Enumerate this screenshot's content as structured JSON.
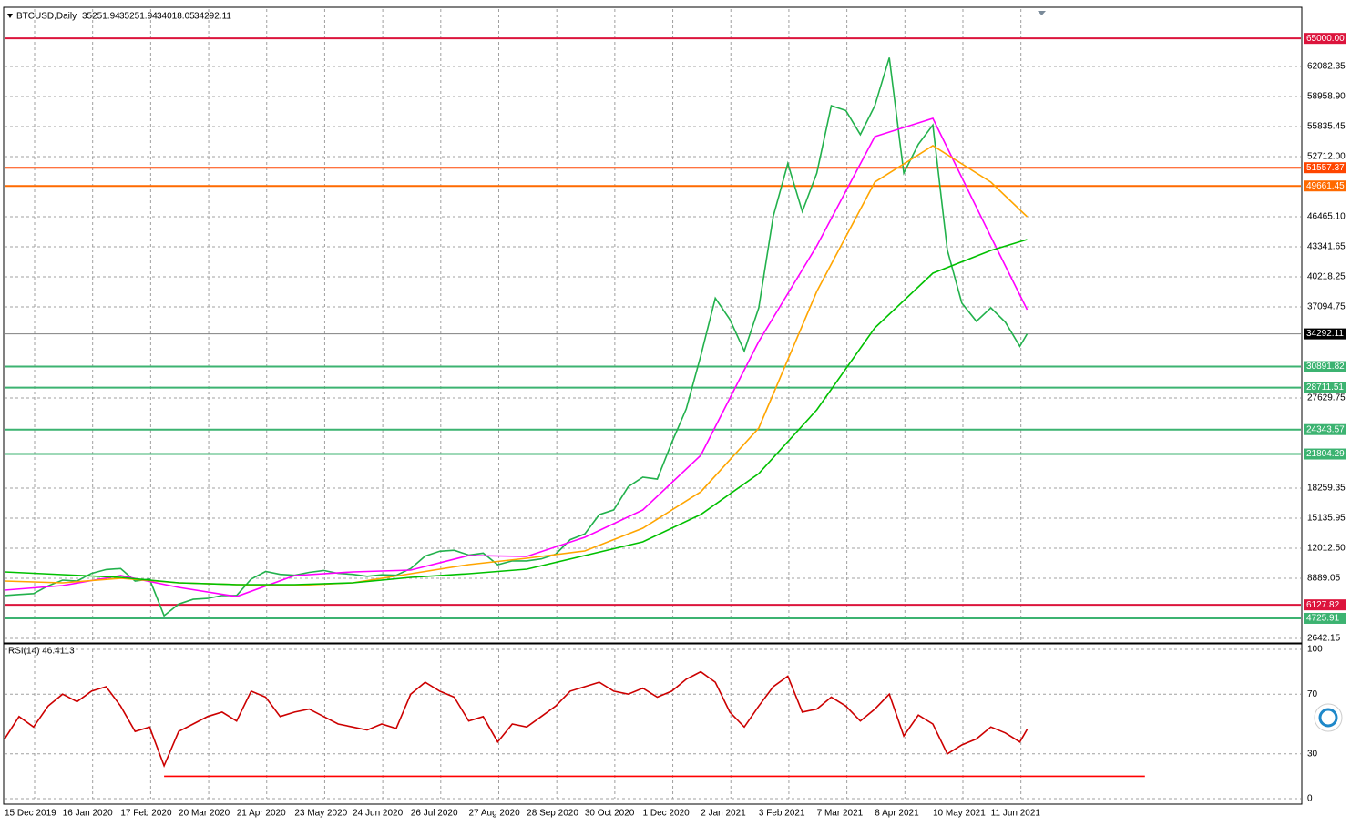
{
  "chart_data": [
    {
      "type": "line",
      "title": "BTCUSD,Daily",
      "ohlc": [
        35251.94,
        35251.94,
        34018.05,
        34292.11
      ],
      "current_price": 34292.11,
      "xlim": [
        0,
        715
      ],
      "ylim": [
        2263,
        68045
      ],
      "grid": true,
      "xticks": [
        {
          "value": 0,
          "label": "15 Dec 2019"
        },
        {
          "value": 32,
          "label": "16 Jan 2020"
        },
        {
          "value": 64,
          "label": "17 Feb 2020"
        },
        {
          "value": 96,
          "label": "20 Mar 2020"
        },
        {
          "value": 128,
          "label": "21 Apr 2020"
        },
        {
          "value": 160,
          "label": "23 May 2020"
        },
        {
          "value": 192,
          "label": "24 Jun 2020"
        },
        {
          "value": 224,
          "label": "26 Jul 2020"
        },
        {
          "value": 256,
          "label": "27 Aug 2020"
        },
        {
          "value": 288,
          "label": "28 Sep 2020"
        },
        {
          "value": 320,
          "label": "30 Oct 2020"
        },
        {
          "value": 352,
          "label": "1 Dec 2020"
        },
        {
          "value": 384,
          "label": "2 Jan 2021"
        },
        {
          "value": 416,
          "label": "3 Feb 2021"
        },
        {
          "value": 448,
          "label": "7 Mar 2021"
        },
        {
          "value": 480,
          "label": "8 Apr 2021"
        },
        {
          "value": 512,
          "label": "10 May 2021"
        },
        {
          "value": 544,
          "label": "11 Jun 2021"
        }
      ],
      "yticks": [
        {
          "value": 2642.15,
          "label": "2642.15"
        },
        {
          "value": 8889.05,
          "label": "8889.05"
        },
        {
          "value": 12012.5,
          "label": "12012.50"
        },
        {
          "value": 15135.95,
          "label": "15135.95"
        },
        {
          "value": 18259.35,
          "label": "18259.35"
        },
        {
          "value": 27629.75,
          "label": "27629.75"
        },
        {
          "value": 37094.75,
          "label": "37094.75"
        },
        {
          "value": 40218.25,
          "label": "40218.25"
        },
        {
          "value": 43341.65,
          "label": "43341.65"
        },
        {
          "value": 46465.1,
          "label": "46465.10"
        },
        {
          "value": 52712,
          "label": "52712.00"
        },
        {
          "value": 55835.45,
          "label": "55835.45"
        },
        {
          "value": 58958.9,
          "label": "58958.90"
        },
        {
          "value": 62082.35,
          "label": "62082.35"
        }
      ],
      "levels": [
        {
          "value": 65000,
          "label": "65000.00",
          "color": "#dc143c"
        },
        {
          "value": 51557.37,
          "label": "51557.37",
          "color": "#ff4500"
        },
        {
          "value": 49661.45,
          "label": "49661.45",
          "color": "#ff6a00"
        },
        {
          "value": 30891.82,
          "label": "30891.82",
          "color": "#3cb371"
        },
        {
          "value": 28711.51,
          "label": "28711.51",
          "color": "#3cb371"
        },
        {
          "value": 24343.57,
          "label": "24343.57",
          "color": "#3cb371"
        },
        {
          "value": 21804.29,
          "label": "21804.29",
          "color": "#3cb371"
        },
        {
          "value": 6127.82,
          "label": "6127.82",
          "color": "#dc143c"
        },
        {
          "value": 4725.91,
          "label": "4725.91",
          "color": "#3cb371"
        }
      ],
      "series": [
        {
          "color": "#22b14c",
          "x": [
            0,
            8,
            16,
            24,
            32,
            40,
            48,
            56,
            64,
            72,
            80,
            88,
            96,
            104,
            112,
            120,
            128,
            136,
            144,
            152,
            160,
            168,
            176,
            184,
            192,
            200,
            208,
            216,
            224,
            232,
            240,
            248,
            256,
            264,
            272,
            280,
            288,
            296,
            304,
            312,
            320,
            328,
            336,
            344,
            352,
            360,
            368,
            376,
            384,
            392,
            400,
            408,
            416,
            424,
            432,
            440,
            448,
            456,
            464,
            472,
            480,
            488,
            496,
            504,
            512,
            520,
            528,
            536,
            544,
            552,
            560,
            564
          ],
          "values": [
            7100,
            7200,
            7300,
            8100,
            8700,
            8600,
            9400,
            9800,
            9900,
            8600,
            8800,
            5000,
            6200,
            6700,
            6800,
            7100,
            7100,
            8800,
            9600,
            9300,
            9200,
            9500,
            9700,
            9400,
            9300,
            9100,
            9250,
            9200,
            9900,
            11200,
            11700,
            11800,
            11300,
            11500,
            10300,
            10700,
            10700,
            10900,
            11400,
            12900,
            13500,
            15500,
            16000,
            18400,
            19400,
            19200,
            23000,
            26500,
            32000,
            38000,
            35800,
            32500,
            37000,
            46500,
            52000,
            47000,
            51000,
            58000,
            57500,
            55000,
            58000,
            63000,
            51000,
            54000,
            56000,
            43000,
            37500,
            35600,
            37000,
            35500,
            33000,
            34292.11
          ]
        },
        {
          "color": "#ff00ff",
          "x": [
            0,
            32,
            64,
            96,
            128,
            160,
            192,
            224,
            256,
            288,
            320,
            352,
            384,
            416,
            448,
            480,
            512,
            544,
            564
          ],
          "values": [
            7659,
            8131,
            9172,
            7942,
            6996,
            9172,
            9550,
            9740,
            11255,
            11160,
            13148,
            15987,
            21668,
            33497,
            43436,
            54794,
            56687,
            44382,
            36810
          ]
        },
        {
          "color": "#ffa500",
          "x": [
            0,
            32,
            64,
            96,
            128,
            160,
            192,
            224,
            256,
            288,
            320,
            352,
            384,
            416,
            448,
            480,
            512,
            544,
            564
          ],
          "values": [
            8605,
            8416,
            8889,
            8416,
            8227,
            8131,
            8416,
            9361,
            10305,
            10970,
            11726,
            14093,
            17870,
            24507,
            38705,
            50061,
            53849,
            50061,
            46465
          ]
        },
        {
          "color": "#00c000",
          "x": [
            0,
            32,
            64,
            96,
            128,
            160,
            192,
            224,
            256,
            288,
            320,
            352,
            384,
            416,
            448,
            480,
            512,
            544,
            564
          ],
          "values": [
            9550,
            9266,
            8983,
            8416,
            8227,
            8227,
            8416,
            8983,
            9361,
            9834,
            11255,
            12675,
            15513,
            19772,
            26398,
            34918,
            40599,
            42965,
            44101
          ]
        }
      ]
    },
    {
      "type": "line",
      "title": "RSI(14) 46.4113",
      "xlim": [
        0,
        715
      ],
      "ylim": [
        0,
        100
      ],
      "yticks": [
        100,
        70,
        30,
        0
      ],
      "trendline": {
        "x": [
          88,
          629
        ],
        "values": [
          15,
          15
        ],
        "color": "#ff0000"
      },
      "series": [
        {
          "color": "#cc0000",
          "x": [
            0,
            8,
            16,
            24,
            32,
            40,
            48,
            56,
            64,
            72,
            80,
            88,
            96,
            104,
            112,
            120,
            128,
            136,
            144,
            152,
            160,
            168,
            176,
            184,
            192,
            200,
            208,
            216,
            224,
            232,
            240,
            248,
            256,
            264,
            272,
            280,
            288,
            296,
            304,
            312,
            320,
            328,
            336,
            344,
            352,
            360,
            368,
            376,
            384,
            392,
            400,
            408,
            416,
            424,
            432,
            440,
            448,
            456,
            464,
            472,
            480,
            488,
            496,
            504,
            512,
            520,
            528,
            536,
            544,
            552,
            560,
            564
          ],
          "values": [
            40,
            55,
            48,
            62,
            70,
            65,
            72,
            75,
            62,
            45,
            48,
            22,
            45,
            50,
            55,
            58,
            52,
            72,
            68,
            55,
            58,
            60,
            55,
            50,
            48,
            46,
            50,
            47,
            70,
            78,
            72,
            68,
            52,
            55,
            38,
            50,
            48,
            55,
            62,
            72,
            75,
            78,
            72,
            70,
            74,
            68,
            72,
            80,
            85,
            78,
            58,
            48,
            62,
            75,
            82,
            58,
            60,
            68,
            62,
            52,
            60,
            70,
            42,
            56,
            50,
            30,
            36,
            40,
            48,
            44,
            38,
            46.41
          ]
        }
      ]
    }
  ]
}
